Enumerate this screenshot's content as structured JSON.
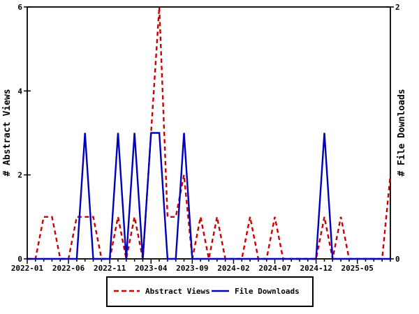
{
  "chart_data": {
    "type": "line",
    "background": "#ffffff",
    "axis_color": "#000000",
    "x": [
      "2022-01",
      "2022-02",
      "2022-03",
      "2022-04",
      "2022-05",
      "2022-06",
      "2022-07",
      "2022-08",
      "2022-09",
      "2022-10",
      "2022-11",
      "2022-12",
      "2023-01",
      "2023-02",
      "2023-03",
      "2023-04",
      "2023-05",
      "2023-06",
      "2023-07",
      "2023-08",
      "2023-09",
      "2023-10",
      "2023-11",
      "2023-12",
      "2024-01",
      "2024-02",
      "2024-03",
      "2024-04",
      "2024-05",
      "2024-06",
      "2024-07",
      "2024-08",
      "2024-09",
      "2024-10",
      "2024-11",
      "2024-12",
      "2025-01",
      "2025-02",
      "2025-03",
      "2025-04",
      "2025-05",
      "2025-06",
      "2025-07",
      "2025-08",
      "2025-09"
    ],
    "x_tick_labels": [
      "2022-01",
      "2022-06",
      "2022-11",
      "2023-04",
      "2023-09",
      "2024-02",
      "2024-07",
      "2024-12",
      "2025-05"
    ],
    "x_tick_step_months": 5,
    "left_axis": {
      "label": "# Abstract Views",
      "min": 0,
      "max": 6,
      "ticks": [
        0,
        2,
        4,
        6
      ]
    },
    "right_axis": {
      "label": "# File Downloads",
      "min": 0,
      "max": 2,
      "ticks": [
        0,
        2
      ]
    },
    "series": [
      {
        "name": "Abstract Views",
        "axis": "left",
        "color": "#cc0000",
        "style": "dashed",
        "values": [
          0,
          0,
          1,
          1,
          0,
          0,
          1,
          1,
          1,
          0,
          0,
          1,
          0,
          1,
          0,
          3,
          6,
          1,
          1,
          2,
          0,
          1,
          0,
          1,
          0,
          0,
          0,
          1,
          0,
          0,
          1,
          0,
          0,
          0,
          0,
          0,
          1,
          0,
          1,
          0,
          0,
          0,
          0,
          0,
          2
        ]
      },
      {
        "name": "File Downloads",
        "axis": "right",
        "color": "#0000bb",
        "style": "solid",
        "values": [
          0,
          0,
          0,
          0,
          0,
          0,
          0,
          1,
          0,
          0,
          0,
          1,
          0,
          1,
          0,
          1,
          1,
          0,
          0,
          1,
          0,
          0,
          0,
          0,
          0,
          0,
          0,
          0,
          0,
          0,
          0,
          0,
          0,
          0,
          0,
          0,
          1,
          0,
          0,
          0,
          0,
          0,
          0,
          0,
          0
        ]
      }
    ],
    "legend": {
      "position": "bottom-center",
      "entries": [
        {
          "label": "Abstract Views",
          "color": "#cc0000",
          "style": "dashed"
        },
        {
          "label": "File Downloads",
          "color": "#0000bb",
          "style": "solid"
        }
      ]
    }
  }
}
